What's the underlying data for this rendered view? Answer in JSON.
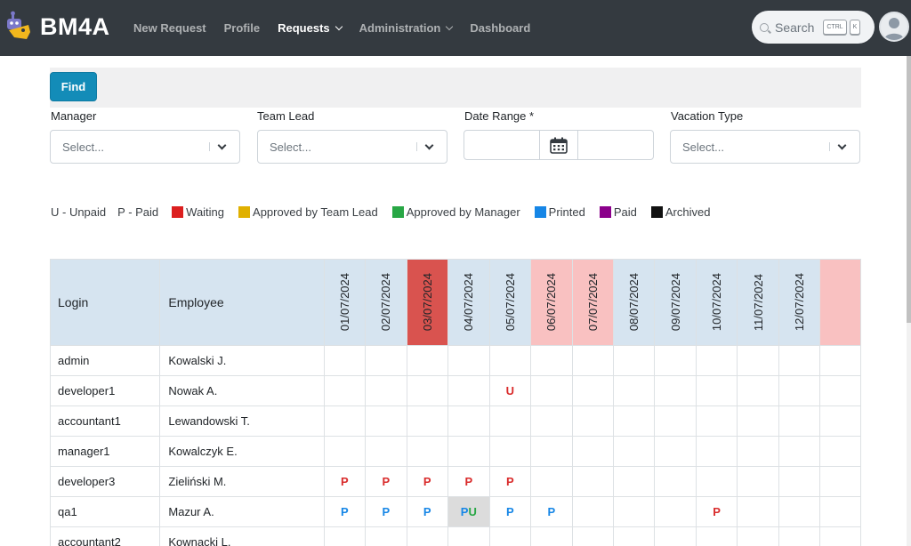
{
  "brand": {
    "name": "BM4A"
  },
  "nav": [
    {
      "label": "New Request",
      "dropdown": false,
      "active": false
    },
    {
      "label": "Profile",
      "dropdown": false,
      "active": false
    },
    {
      "label": "Requests",
      "dropdown": true,
      "active": true
    },
    {
      "label": "Administration",
      "dropdown": true,
      "active": false
    },
    {
      "label": "Dashboard",
      "dropdown": false,
      "active": false
    }
  ],
  "search": {
    "label": "Search",
    "key1": "CTRL",
    "key2": "K"
  },
  "filters": {
    "find_label": "Find",
    "manager": {
      "label": "Manager",
      "placeholder": "Select..."
    },
    "team_lead": {
      "label": "Team Lead",
      "placeholder": "Select..."
    },
    "date_range": {
      "label": "Date Range *",
      "start": "",
      "end": ""
    },
    "vacation_type": {
      "label": "Vacation Type",
      "placeholder": "Select..."
    }
  },
  "legend": {
    "unpaid": "U - Unpaid",
    "paid_code": "P - Paid",
    "statuses": [
      {
        "label": "Waiting",
        "color": "#dc1f1f"
      },
      {
        "label": "Approved by Team Lead",
        "color": "#e0b000"
      },
      {
        "label": "Approved by Manager",
        "color": "#28a745"
      },
      {
        "label": "Printed",
        "color": "#1686e6"
      },
      {
        "label": "Paid",
        "color": "#8b008b"
      },
      {
        "label": "Archived",
        "color": "#111111"
      }
    ]
  },
  "table": {
    "headers": {
      "login": "Login",
      "employee": "Employee"
    },
    "dates": [
      {
        "label": "01/07/2024",
        "kind": "work"
      },
      {
        "label": "02/07/2024",
        "kind": "work"
      },
      {
        "label": "03/07/2024",
        "kind": "holiday"
      },
      {
        "label": "04/07/2024",
        "kind": "work"
      },
      {
        "label": "05/07/2024",
        "kind": "work"
      },
      {
        "label": "06/07/2024",
        "kind": "weekend"
      },
      {
        "label": "07/07/2024",
        "kind": "weekend"
      },
      {
        "label": "08/07/2024",
        "kind": "work"
      },
      {
        "label": "09/07/2024",
        "kind": "work"
      },
      {
        "label": "10/07/2024",
        "kind": "work"
      },
      {
        "label": "11/07/2024",
        "kind": "work"
      },
      {
        "label": "12/07/2024",
        "kind": "work"
      },
      {
        "label": "",
        "kind": "weekend"
      }
    ],
    "rows": [
      {
        "login": "admin",
        "employee": "Kowalski J.",
        "cells": [
          "",
          "",
          "",
          "",
          "",
          "",
          "",
          "",
          "",
          "",
          "",
          "",
          ""
        ]
      },
      {
        "login": "developer1",
        "employee": "Nowak A.",
        "cells": [
          "",
          "",
          "",
          "",
          "U:red",
          "",
          "",
          "",
          "",
          "",
          "",
          "",
          ""
        ]
      },
      {
        "login": "accountant1",
        "employee": "Lewandowski T.",
        "cells": [
          "",
          "",
          "",
          "",
          "",
          "",
          "",
          "",
          "",
          "",
          "",
          "",
          ""
        ]
      },
      {
        "login": "manager1",
        "employee": "Kowalczyk E.",
        "cells": [
          "",
          "",
          "",
          "",
          "",
          "",
          "",
          "",
          "",
          "",
          "",
          "",
          ""
        ]
      },
      {
        "login": "developer3",
        "employee": "Zieliński M.",
        "cells": [
          "P:red",
          "P:red",
          "P:red",
          "P:red",
          "P:red",
          "",
          "",
          "",
          "",
          "",
          "",
          "",
          ""
        ]
      },
      {
        "login": "qa1",
        "employee": "Mazur A.",
        "cells": [
          "P:blue",
          "P:blue",
          "P:blue",
          "PU:mixed",
          "P:blue",
          "P:blue",
          "",
          "",
          "",
          "P:red",
          "",
          "",
          ""
        ]
      },
      {
        "login": "accountant2",
        "employee": "Kownacki L.",
        "cells": [
          "",
          "",
          "",
          "",
          "",
          "",
          "",
          "",
          "",
          "",
          "",
          "",
          ""
        ]
      }
    ]
  }
}
